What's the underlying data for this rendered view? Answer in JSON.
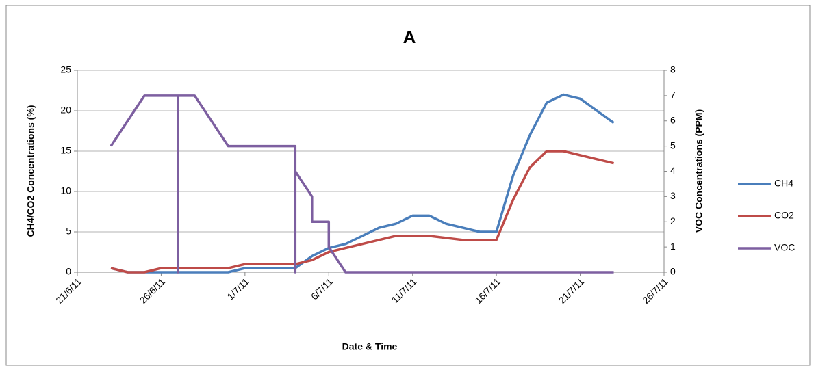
{
  "chart_data": {
    "type": "line",
    "title": "A",
    "xlabel": "Date & Time",
    "ylabel": "CH4/CO2 Concentrations (%)",
    "y2label": "VOC Concentrations (PPM)",
    "xlim": [
      "2011-06-21",
      "2011-07-26"
    ],
    "xticks": [
      {
        "value": "2011-06-21",
        "label": "21/6/11"
      },
      {
        "value": "2011-06-26",
        "label": "26/6/11"
      },
      {
        "value": "2011-07-01",
        "label": "1/7/11"
      },
      {
        "value": "2011-07-06",
        "label": "6/7/11"
      },
      {
        "value": "2011-07-11",
        "label": "11/7/11"
      },
      {
        "value": "2011-07-16",
        "label": "16/7/11"
      },
      {
        "value": "2011-07-21",
        "label": "21/7/11"
      },
      {
        "value": "2011-07-26",
        "label": "26/7/11"
      }
    ],
    "ylim": [
      0,
      25
    ],
    "yticks": [
      0,
      5,
      10,
      15,
      20,
      25
    ],
    "y2lim": [
      0,
      8
    ],
    "y2ticks": [
      0,
      1,
      2,
      3,
      4,
      5,
      6,
      7,
      8
    ],
    "grid": true,
    "legend": "right",
    "series": [
      {
        "name": "CH4",
        "color": "#4a7ebb",
        "x": [
          "2011-06-23",
          "2011-06-24",
          "2011-06-30",
          "2011-07-01",
          "2011-07-04",
          "2011-07-05",
          "2011-07-06",
          "2011-07-07",
          "2011-07-08",
          "2011-07-09",
          "2011-07-10",
          "2011-07-11",
          "2011-07-12",
          "2011-07-13",
          "2011-07-14",
          "2011-07-15",
          "2011-07-16",
          "2011-07-17",
          "2011-07-18",
          "2011-07-19",
          "2011-07-20",
          "2011-07-21",
          "2011-07-22",
          "2011-07-23"
        ],
        "values": [
          0.5,
          0,
          0,
          0.5,
          0.5,
          2,
          3,
          3.5,
          4.5,
          5.5,
          6,
          7,
          7,
          6,
          5.5,
          5,
          5,
          12,
          17,
          21,
          22,
          21.5,
          20,
          18.5
        ]
      },
      {
        "name": "CO2",
        "color": "#be4b48",
        "x": [
          "2011-06-23",
          "2011-06-24",
          "2011-06-25",
          "2011-06-26",
          "2011-06-30",
          "2011-07-01",
          "2011-07-04",
          "2011-07-05",
          "2011-07-06",
          "2011-07-07",
          "2011-07-08",
          "2011-07-09",
          "2011-07-10",
          "2011-07-12",
          "2011-07-14",
          "2011-07-16",
          "2011-07-17",
          "2011-07-18",
          "2011-07-19",
          "2011-07-20",
          "2011-07-21",
          "2011-07-22",
          "2011-07-23"
        ],
        "values": [
          0.5,
          0,
          0,
          0.5,
          0.5,
          1,
          1,
          1.5,
          2.5,
          3,
          3.5,
          4,
          4.5,
          4.5,
          4,
          4,
          9,
          13,
          15,
          15,
          14.5,
          14,
          13.5
        ]
      },
      {
        "name": "VOC",
        "color": "#7d5fa0",
        "axis": "y2",
        "x": [
          "2011-06-23",
          "2011-06-24",
          "2011-06-25",
          "2011-06-27",
          "2011-06-27",
          "2011-06-27",
          "2011-06-28",
          "2011-06-29",
          "2011-06-30",
          "2011-07-04",
          "2011-07-04",
          "2011-07-04",
          "2011-07-05",
          "2011-07-05",
          "2011-07-06",
          "2011-07-06",
          "2011-07-07",
          "2011-07-23"
        ],
        "values": [
          5,
          6,
          7,
          7,
          0,
          7,
          7,
          6,
          5,
          5,
          0,
          4,
          3,
          2,
          2,
          1,
          0,
          0
        ]
      }
    ]
  }
}
